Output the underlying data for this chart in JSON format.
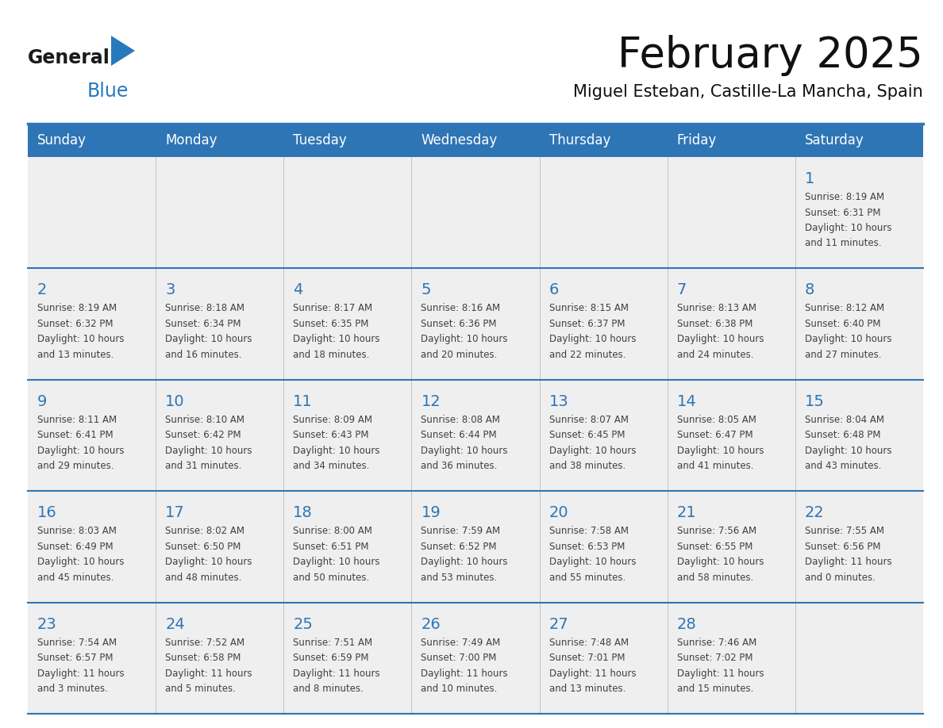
{
  "title": "February 2025",
  "subtitle": "Miguel Esteban, Castille-La Mancha, Spain",
  "header_color": "#2E75B6",
  "header_text_color": "#FFFFFF",
  "day_names": [
    "Sunday",
    "Monday",
    "Tuesday",
    "Wednesday",
    "Thursday",
    "Friday",
    "Saturday"
  ],
  "background_color": "#FFFFFF",
  "cell_bg": "#EFEFEF",
  "separator_color": "#2E75B6",
  "day_num_color": "#2E75B6",
  "info_text_color": "#404040",
  "logo_black": "#1a1a1a",
  "logo_blue": "#2878BE",
  "calendar_data": [
    [
      {
        "day": null,
        "sunrise": null,
        "sunset": null,
        "daylight": null
      },
      {
        "day": null,
        "sunrise": null,
        "sunset": null,
        "daylight": null
      },
      {
        "day": null,
        "sunrise": null,
        "sunset": null,
        "daylight": null
      },
      {
        "day": null,
        "sunrise": null,
        "sunset": null,
        "daylight": null
      },
      {
        "day": null,
        "sunrise": null,
        "sunset": null,
        "daylight": null
      },
      {
        "day": null,
        "sunrise": null,
        "sunset": null,
        "daylight": null
      },
      {
        "day": 1,
        "sunrise": "8:19 AM",
        "sunset": "6:31 PM",
        "daylight": "10 hours and 11 minutes"
      }
    ],
    [
      {
        "day": 2,
        "sunrise": "8:19 AM",
        "sunset": "6:32 PM",
        "daylight": "10 hours and 13 minutes"
      },
      {
        "day": 3,
        "sunrise": "8:18 AM",
        "sunset": "6:34 PM",
        "daylight": "10 hours and 16 minutes"
      },
      {
        "day": 4,
        "sunrise": "8:17 AM",
        "sunset": "6:35 PM",
        "daylight": "10 hours and 18 minutes"
      },
      {
        "day": 5,
        "sunrise": "8:16 AM",
        "sunset": "6:36 PM",
        "daylight": "10 hours and 20 minutes"
      },
      {
        "day": 6,
        "sunrise": "8:15 AM",
        "sunset": "6:37 PM",
        "daylight": "10 hours and 22 minutes"
      },
      {
        "day": 7,
        "sunrise": "8:13 AM",
        "sunset": "6:38 PM",
        "daylight": "10 hours and 24 minutes"
      },
      {
        "day": 8,
        "sunrise": "8:12 AM",
        "sunset": "6:40 PM",
        "daylight": "10 hours and 27 minutes"
      }
    ],
    [
      {
        "day": 9,
        "sunrise": "8:11 AM",
        "sunset": "6:41 PM",
        "daylight": "10 hours and 29 minutes"
      },
      {
        "day": 10,
        "sunrise": "8:10 AM",
        "sunset": "6:42 PM",
        "daylight": "10 hours and 31 minutes"
      },
      {
        "day": 11,
        "sunrise": "8:09 AM",
        "sunset": "6:43 PM",
        "daylight": "10 hours and 34 minutes"
      },
      {
        "day": 12,
        "sunrise": "8:08 AM",
        "sunset": "6:44 PM",
        "daylight": "10 hours and 36 minutes"
      },
      {
        "day": 13,
        "sunrise": "8:07 AM",
        "sunset": "6:45 PM",
        "daylight": "10 hours and 38 minutes"
      },
      {
        "day": 14,
        "sunrise": "8:05 AM",
        "sunset": "6:47 PM",
        "daylight": "10 hours and 41 minutes"
      },
      {
        "day": 15,
        "sunrise": "8:04 AM",
        "sunset": "6:48 PM",
        "daylight": "10 hours and 43 minutes"
      }
    ],
    [
      {
        "day": 16,
        "sunrise": "8:03 AM",
        "sunset": "6:49 PM",
        "daylight": "10 hours and 45 minutes"
      },
      {
        "day": 17,
        "sunrise": "8:02 AM",
        "sunset": "6:50 PM",
        "daylight": "10 hours and 48 minutes"
      },
      {
        "day": 18,
        "sunrise": "8:00 AM",
        "sunset": "6:51 PM",
        "daylight": "10 hours and 50 minutes"
      },
      {
        "day": 19,
        "sunrise": "7:59 AM",
        "sunset": "6:52 PM",
        "daylight": "10 hours and 53 minutes"
      },
      {
        "day": 20,
        "sunrise": "7:58 AM",
        "sunset": "6:53 PM",
        "daylight": "10 hours and 55 minutes"
      },
      {
        "day": 21,
        "sunrise": "7:56 AM",
        "sunset": "6:55 PM",
        "daylight": "10 hours and 58 minutes"
      },
      {
        "day": 22,
        "sunrise": "7:55 AM",
        "sunset": "6:56 PM",
        "daylight": "11 hours and 0 minutes"
      }
    ],
    [
      {
        "day": 23,
        "sunrise": "7:54 AM",
        "sunset": "6:57 PM",
        "daylight": "11 hours and 3 minutes"
      },
      {
        "day": 24,
        "sunrise": "7:52 AM",
        "sunset": "6:58 PM",
        "daylight": "11 hours and 5 minutes"
      },
      {
        "day": 25,
        "sunrise": "7:51 AM",
        "sunset": "6:59 PM",
        "daylight": "11 hours and 8 minutes"
      },
      {
        "day": 26,
        "sunrise": "7:49 AM",
        "sunset": "7:00 PM",
        "daylight": "11 hours and 10 minutes"
      },
      {
        "day": 27,
        "sunrise": "7:48 AM",
        "sunset": "7:01 PM",
        "daylight": "11 hours and 13 minutes"
      },
      {
        "day": 28,
        "sunrise": "7:46 AM",
        "sunset": "7:02 PM",
        "daylight": "11 hours and 15 minutes"
      },
      {
        "day": null,
        "sunrise": null,
        "sunset": null,
        "daylight": null
      }
    ]
  ]
}
